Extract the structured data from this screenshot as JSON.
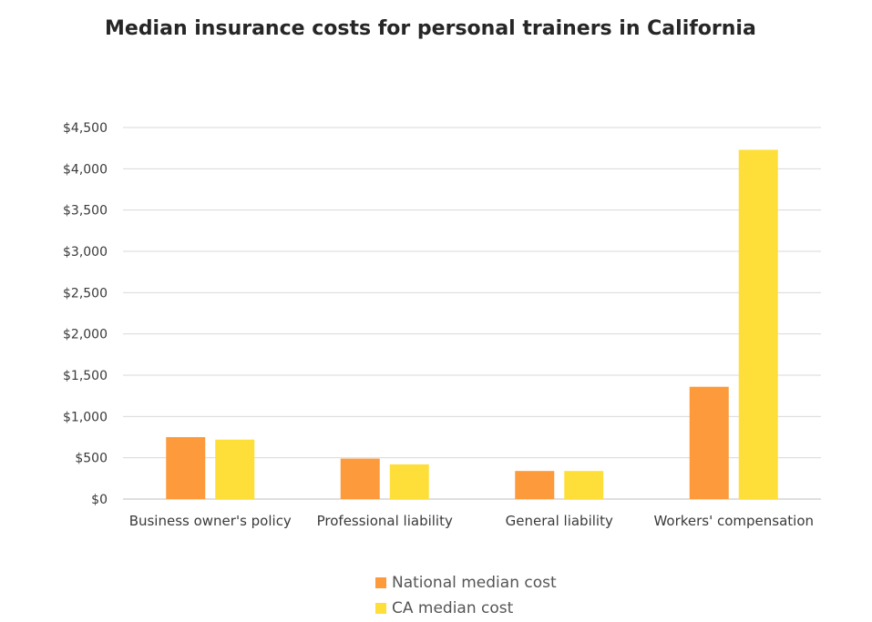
{
  "chart_data": {
    "type": "bar",
    "title": "Median insurance costs for personal trainers in California",
    "categories": [
      "Business owner's policy",
      "Professional liability",
      "General liability",
      "Workers' compensation"
    ],
    "series": [
      {
        "name": "National median cost",
        "color": "#fd9a3b",
        "values": [
          750,
          490,
          340,
          1360
        ]
      },
      {
        "name": "CA median cost",
        "color": "#fedf3a",
        "values": [
          720,
          420,
          340,
          4230
        ]
      }
    ],
    "ylim": [
      0,
      4500
    ],
    "yticks": [
      0,
      500,
      1000,
      1500,
      2000,
      2500,
      3000,
      3500,
      4000,
      4500
    ],
    "ytick_labels": [
      "$0",
      "$500",
      "$1,000",
      "$1,500",
      "$2,000",
      "$2,500",
      "$3,000",
      "$3,500",
      "$4,000",
      "$4,500"
    ],
    "grid": true,
    "legend_position": "bottom"
  }
}
